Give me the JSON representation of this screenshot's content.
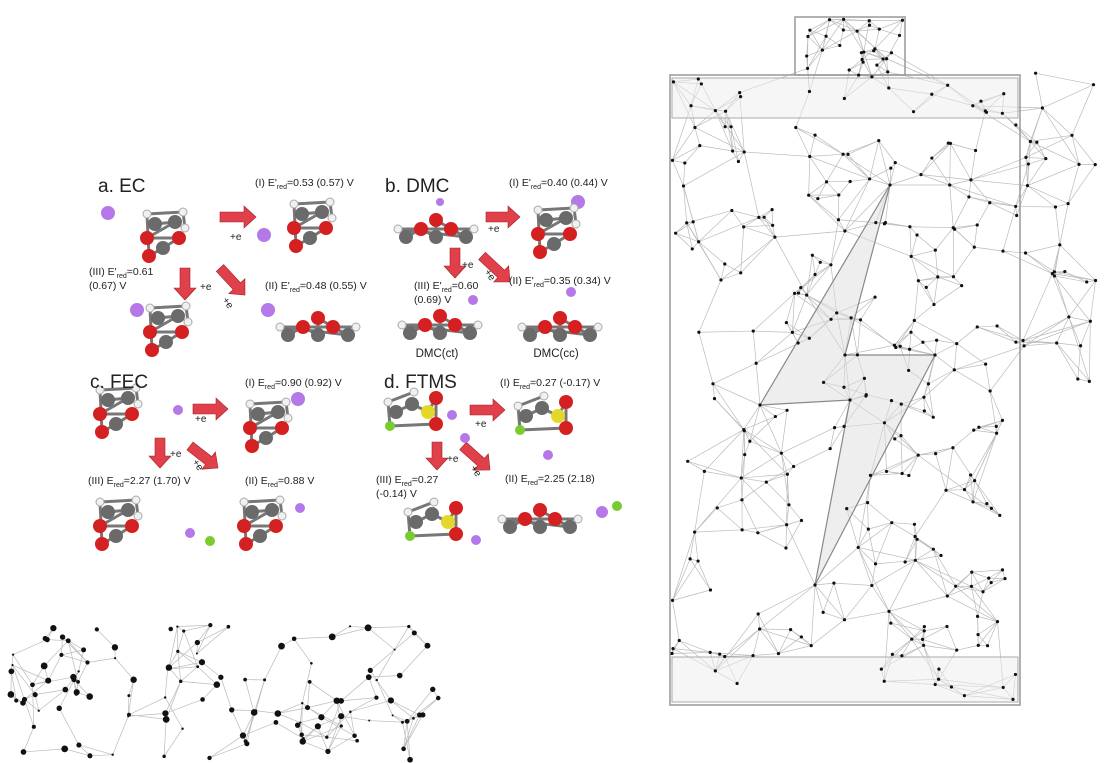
{
  "panels": [
    {
      "title": "a. EC",
      "labels": [
        {
          "prefix": "(I) E'",
          "sub": "red",
          "suffix": "=0.53 (0.57) V"
        },
        {
          "prefix": "(III) E'",
          "sub": "red",
          "suffix": "=0.61",
          "line2": "(0.67) V"
        },
        {
          "prefix": "(II) E'",
          "sub": "red",
          "suffix": "=0.48 (0.55) V"
        }
      ],
      "arrow_labels": [
        "+e",
        "+e",
        "+e"
      ]
    },
    {
      "title": "b. DMC",
      "labels": [
        {
          "prefix": "(I) E'",
          "sub": "red",
          "suffix": "=0.40 (0.44) V"
        },
        {
          "prefix": "(III) E'",
          "sub": "red",
          "suffix": "=0.60",
          "line2": "(0.69) V"
        },
        {
          "prefix": "(II) E'",
          "sub": "red",
          "suffix": "=0.35 (0.34) V"
        }
      ],
      "arrow_labels": [
        "+e",
        "+e",
        "+e"
      ],
      "molecule_names": [
        "DMC(ct)",
        "DMC(cc)"
      ]
    },
    {
      "title": "c. FEC",
      "labels": [
        {
          "prefix": "(I) E",
          "sub": "red",
          "suffix": "=0.90 (0.92) V"
        },
        {
          "prefix": "(III) E",
          "sub": "red",
          "suffix": "=2.27 (1.70) V"
        },
        {
          "prefix": "(II) E",
          "sub": "red",
          "suffix": "=0.88 V"
        }
      ],
      "arrow_labels": [
        "+e",
        "+e",
        "+e"
      ]
    },
    {
      "title": "d. FTMS",
      "labels": [
        {
          "prefix": "(I) E",
          "sub": "red",
          "suffix": "=0.27 (-0.17) V"
        },
        {
          "prefix": "(III) E",
          "sub": "red",
          "suffix": "=0.27",
          "line2": "(-0.14) V"
        },
        {
          "prefix": "(II) E",
          "sub": "red",
          "suffix": "=2.25 (2.18)"
        }
      ],
      "arrow_labels": [
        "+e",
        "+e",
        "+e"
      ]
    }
  ]
}
